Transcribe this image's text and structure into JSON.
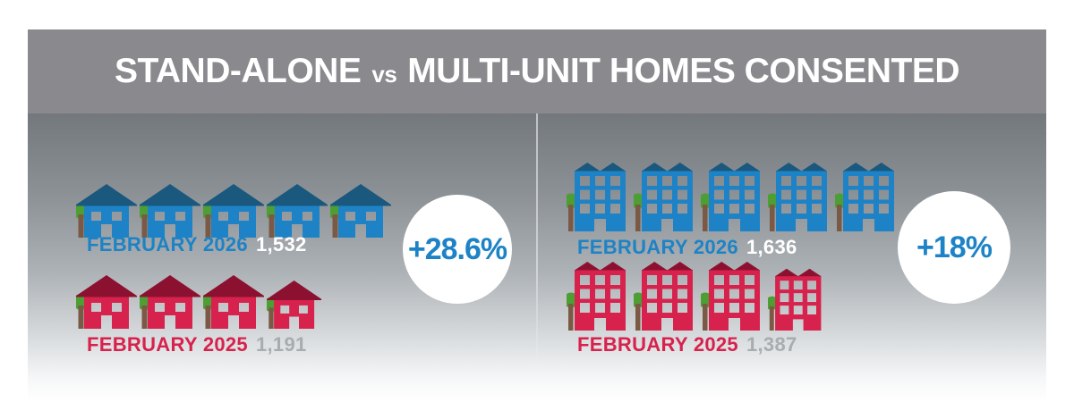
{
  "title": {
    "part1": "STAND-ALONE",
    "vs": "vs",
    "part2": "MULTI-UNIT HOMES CONSENTED"
  },
  "colors": {
    "header_bg": "#8a8a8e",
    "blue": "#1d83c6",
    "roof_blue": "#1a587e",
    "red": "#d7224d",
    "roof_red": "#8c1130",
    "tree": "#4d9e33",
    "trunk": "#7a5a45",
    "value_2026": "#ffffff",
    "value_2025": "#a8acaf",
    "change_text": "#1d83c6",
    "circle_bg": "#ffffff"
  },
  "panels": [
    {
      "id": "stand-alone",
      "icon": "house",
      "change": "+28.6%",
      "rows": [
        {
          "label": "FEBRUARY 2026",
          "value": "1,532",
          "icon_count": 5,
          "scheme": "blue",
          "value_color": "value_2026"
        },
        {
          "label": "FEBRUARY 2025",
          "value": "1,191",
          "icon_count": 4,
          "scheme": "red",
          "value_color": "value_2025"
        }
      ]
    },
    {
      "id": "multi-unit",
      "icon": "building",
      "change": "+18%",
      "rows": [
        {
          "label": "FEBRUARY 2026",
          "value": "1,636",
          "icon_count": 5,
          "scheme": "blue",
          "value_color": "value_2026"
        },
        {
          "label": "FEBRUARY 2025",
          "value": "1,387",
          "icon_count": 4,
          "scheme": "red",
          "value_color": "value_2025"
        }
      ]
    }
  ],
  "chart_data": {
    "type": "bar",
    "subtype": "pictograph",
    "title": "STAND-ALONE vs MULTI-UNIT HOMES CONSENTED",
    "categories": [
      "Stand-alone homes",
      "Multi-unit homes"
    ],
    "series": [
      {
        "name": "February 2026",
        "values": [
          1532,
          1636
        ]
      },
      {
        "name": "February 2025",
        "values": [
          1191,
          1387
        ]
      }
    ],
    "percent_change": [
      "+28.6%",
      "+18%"
    ],
    "icon_counts": {
      "stand_alone": [
        5,
        4
      ],
      "multi_unit": [
        5,
        4
      ]
    },
    "legend_position": "inline-labels",
    "grid": false
  }
}
